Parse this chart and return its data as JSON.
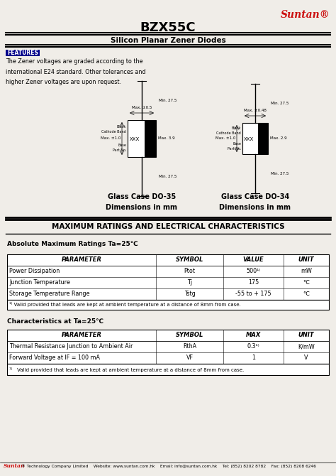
{
  "title": "BZX55C",
  "subtitle": "Silicon Planar Zener Diodes",
  "suntan_logo": "Suntan®",
  "features_label": "FEATURES",
  "features_text": "The Zener voltages are graded according to the\ninternational E24 standard. Other tolerances and\nhigher Zener voltages are upon request.",
  "case1_label": "Glass Case DO-35\nDimensions in mm",
  "case2_label": "Glass Case DO-34\nDimensions in mm",
  "section_title": "MAXIMUM RATINGS AND ELECTRICAL CHARACTERISTICS",
  "abs_max_label": "Absolute Maximum Ratings Ta=25℃",
  "table1_headers": [
    "PARAMETER",
    "SYMBOL",
    "VALUE",
    "UNIT"
  ],
  "table1_rows": [
    [
      "Power Dissipation",
      "Ptot",
      "500¹⁾",
      "mW"
    ],
    [
      "Junction Temperature",
      "Tj",
      "175",
      "℃"
    ],
    [
      "Storage Temperature Range",
      "Tstg",
      "-55 to + 175",
      "℃"
    ]
  ],
  "table1_note": "¹⁾ Valid provided that leads are kept at ambient temperature at a distance of 8mm from case.",
  "char_label": "Characteristics at Ta=25℃",
  "table2_headers": [
    "PARAMETER",
    "SYMBOL",
    "MAX",
    "UNIT"
  ],
  "table2_rows": [
    [
      "Thermal Resistance Junction to Ambient Air",
      "RthA",
      "0.3¹⁾",
      "K/mW"
    ],
    [
      "Forward Voltage at IF = 100 mA",
      "VF",
      "1",
      "V"
    ]
  ],
  "table2_note": "¹⁾   Valid provided that leads are kept at ambient temperature at a distance of 8mm from case.",
  "footer_suntan": "Suntan",
  "footer_rest": "® Technology Company Limited    Website: www.suntan.com.hk    Email: info@suntan.com.hk    Tel: (852) 8202 8782    Fax: (852) 8208 6246",
  "bg_color": "#f0ede8",
  "red_color": "#cc1111",
  "navy_color": "#00008b"
}
